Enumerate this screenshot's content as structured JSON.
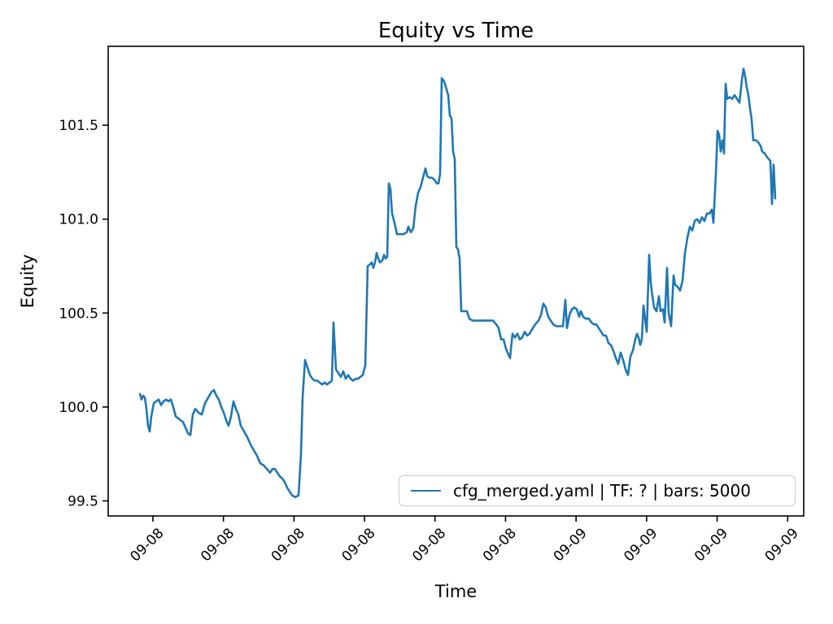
{
  "chart_data": {
    "type": "line",
    "title": "Equity vs Time",
    "xlabel": "Time",
    "ylabel": "Equity",
    "grid": false,
    "ylim": [
      99.42,
      101.92
    ],
    "y_ticks": [
      {
        "value": 99.5,
        "label": "99.5"
      },
      {
        "value": 100.0,
        "label": "100.0"
      },
      {
        "value": 100.5,
        "label": "100.5"
      },
      {
        "value": 101.0,
        "label": "101.0"
      },
      {
        "value": 101.5,
        "label": "101.5"
      }
    ],
    "x_tick_labels": [
      "09-08",
      "09-08",
      "09-08",
      "09-08",
      "09-08",
      "09-08",
      "09-09",
      "09-09",
      "09-09",
      "09-09"
    ],
    "x_tick_rotation_deg": 45,
    "legend": {
      "position": "lower right",
      "entries": [
        {
          "label": "cfg_merged.yaml | TF: ? | bars: 5000",
          "color": "#1f77b4"
        }
      ]
    },
    "series": [
      {
        "name": "cfg_merged.yaml | TF: ? | bars: 5000",
        "color": "#1f77b4",
        "x_unit": "screen_px",
        "points": [
          [
            172,
            100.07
          ],
          [
            174,
            100.04
          ],
          [
            176,
            100.06
          ],
          [
            178,
            100.05
          ],
          [
            180,
            99.99
          ],
          [
            182,
            99.9
          ],
          [
            184,
            99.87
          ],
          [
            186,
            99.95
          ],
          [
            189,
            100.02
          ],
          [
            192,
            100.03
          ],
          [
            195,
            100.04
          ],
          [
            198,
            100.01
          ],
          [
            201,
            100.03
          ],
          [
            204,
            100.04
          ],
          [
            207,
            100.03
          ],
          [
            210,
            100.04
          ],
          [
            213,
            100.0
          ],
          [
            216,
            99.95
          ],
          [
            219,
            99.94
          ],
          [
            222,
            99.93
          ],
          [
            225,
            99.92
          ],
          [
            228,
            99.89
          ],
          [
            231,
            99.86
          ],
          [
            234,
            99.85
          ],
          [
            237,
            99.96
          ],
          [
            240,
            99.99
          ],
          [
            244,
            99.97
          ],
          [
            248,
            99.96
          ],
          [
            252,
            100.02
          ],
          [
            256,
            100.05
          ],
          [
            260,
            100.08
          ],
          [
            263,
            100.09
          ],
          [
            266,
            100.06
          ],
          [
            269,
            100.04
          ],
          [
            272,
            100.0
          ],
          [
            275,
            99.97
          ],
          [
            278,
            99.93
          ],
          [
            281,
            99.9
          ],
          [
            284,
            99.95
          ],
          [
            287,
            100.03
          ],
          [
            290,
            99.99
          ],
          [
            293,
            99.96
          ],
          [
            296,
            99.9
          ],
          [
            300,
            99.87
          ],
          [
            304,
            99.84
          ],
          [
            308,
            99.8
          ],
          [
            312,
            99.77
          ],
          [
            316,
            99.74
          ],
          [
            320,
            99.7
          ],
          [
            324,
            99.69
          ],
          [
            328,
            99.67
          ],
          [
            332,
            99.65
          ],
          [
            335,
            99.67
          ],
          [
            338,
            99.67
          ],
          [
            341,
            99.65
          ],
          [
            344,
            99.63
          ],
          [
            347,
            99.62
          ],
          [
            350,
            99.6
          ],
          [
            353,
            99.57
          ],
          [
            356,
            99.55
          ],
          [
            359,
            99.53
          ],
          [
            363,
            99.52
          ],
          [
            367,
            99.53
          ],
          [
            370,
            99.75
          ],
          [
            372,
            100.05
          ],
          [
            375,
            100.25
          ],
          [
            378,
            100.21
          ],
          [
            381,
            100.17
          ],
          [
            384,
            100.15
          ],
          [
            387,
            100.14
          ],
          [
            390,
            100.14
          ],
          [
            393,
            100.13
          ],
          [
            396,
            100.12
          ],
          [
            399,
            100.13
          ],
          [
            402,
            100.12
          ],
          [
            405,
            100.13
          ],
          [
            408,
            100.14
          ],
          [
            410,
            100.45
          ],
          [
            413,
            100.2
          ],
          [
            416,
            100.18
          ],
          [
            419,
            100.16
          ],
          [
            422,
            100.19
          ],
          [
            425,
            100.15
          ],
          [
            428,
            100.17
          ],
          [
            431,
            100.15
          ],
          [
            434,
            100.14
          ],
          [
            437,
            100.15
          ],
          [
            440,
            100.15
          ],
          [
            443,
            100.16
          ],
          [
            446,
            100.17
          ],
          [
            449,
            100.22
          ],
          [
            452,
            100.75
          ],
          [
            455,
            100.76
          ],
          [
            457,
            100.77
          ],
          [
            459,
            100.74
          ],
          [
            461,
            100.77
          ],
          [
            463,
            100.82
          ],
          [
            465,
            100.79
          ],
          [
            467,
            100.77
          ],
          [
            470,
            100.78
          ],
          [
            472,
            100.81
          ],
          [
            474,
            100.79
          ],
          [
            476,
            100.8
          ],
          [
            478,
            101.19
          ],
          [
            480,
            101.16
          ],
          [
            482,
            101.03
          ],
          [
            485,
            100.98
          ],
          [
            488,
            100.92
          ],
          [
            492,
            100.92
          ],
          [
            496,
            100.92
          ],
          [
            500,
            100.93
          ],
          [
            502,
            100.96
          ],
          [
            505,
            100.93
          ],
          [
            508,
            100.95
          ],
          [
            511,
            101.07
          ],
          [
            514,
            101.14
          ],
          [
            517,
            101.17
          ],
          [
            520,
            101.22
          ],
          [
            523,
            101.27
          ],
          [
            525,
            101.23
          ],
          [
            528,
            101.22
          ],
          [
            531,
            101.22
          ],
          [
            534,
            101.21
          ],
          [
            537,
            101.19
          ],
          [
            539,
            101.19
          ],
          [
            541,
            101.24
          ],
          [
            543,
            101.75
          ],
          [
            545,
            101.74
          ],
          [
            547,
            101.72
          ],
          [
            549,
            101.69
          ],
          [
            551,
            101.66
          ],
          [
            553,
            101.55
          ],
          [
            555,
            101.54
          ],
          [
            557,
            101.36
          ],
          [
            559,
            101.32
          ],
          [
            561,
            100.85
          ],
          [
            563,
            100.84
          ],
          [
            565,
            100.79
          ],
          [
            567,
            100.51
          ],
          [
            570,
            100.51
          ],
          [
            574,
            100.51
          ],
          [
            577,
            100.47
          ],
          [
            581,
            100.46
          ],
          [
            586,
            100.46
          ],
          [
            591,
            100.46
          ],
          [
            596,
            100.46
          ],
          [
            601,
            100.46
          ],
          [
            606,
            100.46
          ],
          [
            610,
            100.44
          ],
          [
            613,
            100.42
          ],
          [
            616,
            100.36
          ],
          [
            619,
            100.36
          ],
          [
            622,
            100.31
          ],
          [
            625,
            100.28
          ],
          [
            627,
            100.26
          ],
          [
            630,
            100.39
          ],
          [
            633,
            100.37
          ],
          [
            636,
            100.39
          ],
          [
            639,
            100.36
          ],
          [
            642,
            100.37
          ],
          [
            645,
            100.4
          ],
          [
            648,
            100.38
          ],
          [
            651,
            100.39
          ],
          [
            655,
            100.42
          ],
          [
            658,
            100.44
          ],
          [
            662,
            100.46
          ],
          [
            665,
            100.49
          ],
          [
            668,
            100.55
          ],
          [
            671,
            100.53
          ],
          [
            674,
            100.48
          ],
          [
            677,
            100.46
          ],
          [
            680,
            100.44
          ],
          [
            684,
            100.43
          ],
          [
            688,
            100.43
          ],
          [
            692,
            100.43
          ],
          [
            695,
            100.57
          ],
          [
            697,
            100.42
          ],
          [
            700,
            100.49
          ],
          [
            703,
            100.52
          ],
          [
            706,
            100.53
          ],
          [
            709,
            100.52
          ],
          [
            712,
            100.48
          ],
          [
            714,
            100.51
          ],
          [
            717,
            100.48
          ],
          [
            720,
            100.47
          ],
          [
            724,
            100.47
          ],
          [
            727,
            100.45
          ],
          [
            730,
            100.44
          ],
          [
            733,
            100.44
          ],
          [
            736,
            100.42
          ],
          [
            739,
            100.4
          ],
          [
            742,
            100.38
          ],
          [
            745,
            100.38
          ],
          [
            748,
            100.34
          ],
          [
            751,
            100.33
          ],
          [
            754,
            100.3
          ],
          [
            757,
            100.26
          ],
          [
            760,
            100.23
          ],
          [
            763,
            100.29
          ],
          [
            766,
            100.25
          ],
          [
            769,
            100.2
          ],
          [
            772,
            100.17
          ],
          [
            775,
            100.27
          ],
          [
            778,
            100.3
          ],
          [
            781,
            100.36
          ],
          [
            783,
            100.39
          ],
          [
            785,
            100.37
          ],
          [
            787,
            100.33
          ],
          [
            789,
            100.36
          ],
          [
            791,
            100.54
          ],
          [
            793,
            100.47
          ],
          [
            795,
            100.4
          ],
          [
            798,
            100.81
          ],
          [
            800,
            100.66
          ],
          [
            802,
            100.59
          ],
          [
            804,
            100.53
          ],
          [
            807,
            100.51
          ],
          [
            810,
            100.59
          ],
          [
            812,
            100.51
          ],
          [
            815,
            100.52
          ],
          [
            817,
            100.45
          ],
          [
            820,
            100.74
          ],
          [
            822,
            100.5
          ],
          [
            825,
            100.43
          ],
          [
            828,
            100.7
          ],
          [
            830,
            100.65
          ],
          [
            833,
            100.64
          ],
          [
            836,
            100.62
          ],
          [
            839,
            100.67
          ],
          [
            842,
            100.82
          ],
          [
            845,
            100.9
          ],
          [
            848,
            100.96
          ],
          [
            851,
            100.94
          ],
          [
            854,
            100.99
          ],
          [
            857,
            101.0
          ],
          [
            860,
            100.98
          ],
          [
            863,
            101.01
          ],
          [
            866,
            100.99
          ],
          [
            869,
            101.03
          ],
          [
            872,
            101.03
          ],
          [
            875,
            101.05
          ],
          [
            877,
            100.98
          ],
          [
            880,
            101.24
          ],
          [
            882,
            101.47
          ],
          [
            884,
            101.45
          ],
          [
            886,
            101.36
          ],
          [
            888,
            101.42
          ],
          [
            890,
            101.35
          ],
          [
            892,
            101.72
          ],
          [
            894,
            101.64
          ],
          [
            897,
            101.65
          ],
          [
            900,
            101.64
          ],
          [
            903,
            101.66
          ],
          [
            906,
            101.64
          ],
          [
            909,
            101.62
          ],
          [
            912,
            101.74
          ],
          [
            914,
            101.8
          ],
          [
            916,
            101.76
          ],
          [
            918,
            101.7
          ],
          [
            920,
            101.66
          ],
          [
            922,
            101.59
          ],
          [
            924,
            101.53
          ],
          [
            926,
            101.42
          ],
          [
            929,
            101.42
          ],
          [
            932,
            101.41
          ],
          [
            935,
            101.39
          ],
          [
            937,
            101.36
          ],
          [
            940,
            101.35
          ],
          [
            943,
            101.33
          ],
          [
            945,
            101.32
          ],
          [
            947,
            101.31
          ],
          [
            949,
            101.08
          ],
          [
            951,
            101.29
          ],
          [
            953,
            101.11
          ]
        ]
      }
    ]
  },
  "colors": {
    "line": "#1f77b4",
    "text": "#000000",
    "spine": "#000000",
    "legend_border": "#cccccc",
    "background": "#ffffff"
  }
}
